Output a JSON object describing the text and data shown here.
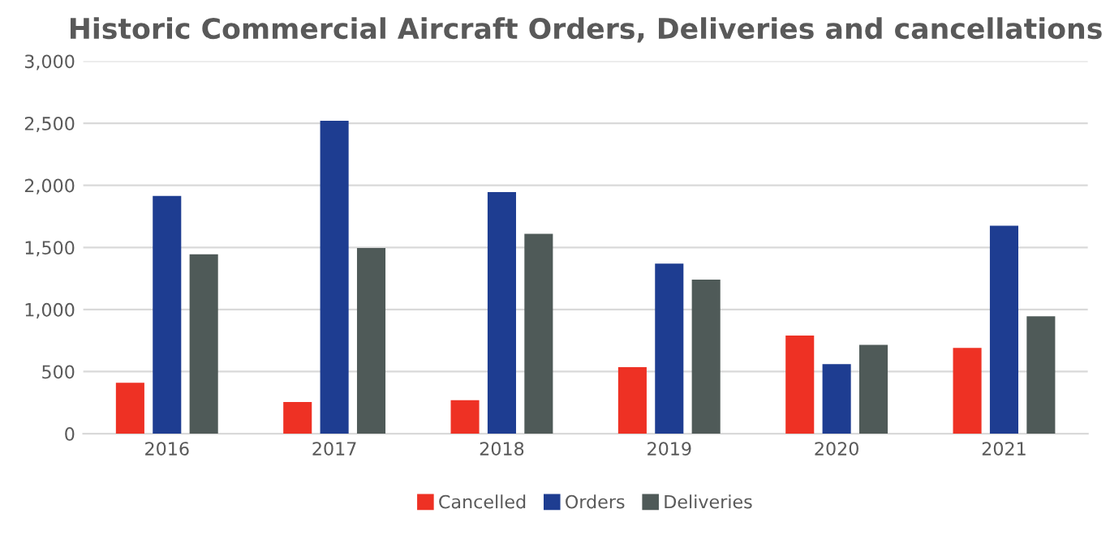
{
  "chart_data": {
    "type": "bar",
    "title": "Historic Commercial Aircraft Orders, Deliveries and cancellations",
    "categories": [
      "2016",
      "2017",
      "2018",
      "2019",
      "2020",
      "2021"
    ],
    "series": [
      {
        "name": "Cancelled",
        "color": "#ee3124",
        "values": [
          410,
          255,
          270,
          535,
          790,
          690
        ]
      },
      {
        "name": "Orders",
        "color": "#1e3d91",
        "values": [
          1915,
          2520,
          1945,
          1370,
          560,
          1675
        ]
      },
      {
        "name": "Deliveries",
        "color": "#4f5a58",
        "values": [
          1445,
          1495,
          1610,
          1240,
          715,
          945
        ]
      }
    ],
    "ylim": [
      0,
      3000
    ],
    "yticks": [
      {
        "value": 0,
        "label": "0"
      },
      {
        "value": 500,
        "label": "500"
      },
      {
        "value": 1000,
        "label": "1,000"
      },
      {
        "value": 1500,
        "label": "1,500"
      },
      {
        "value": 2000,
        "label": "2,000"
      },
      {
        "value": 2500,
        "label": "2,500"
      },
      {
        "value": 3000,
        "label": "3,000"
      }
    ],
    "grid": "y",
    "legend": "bottom"
  }
}
